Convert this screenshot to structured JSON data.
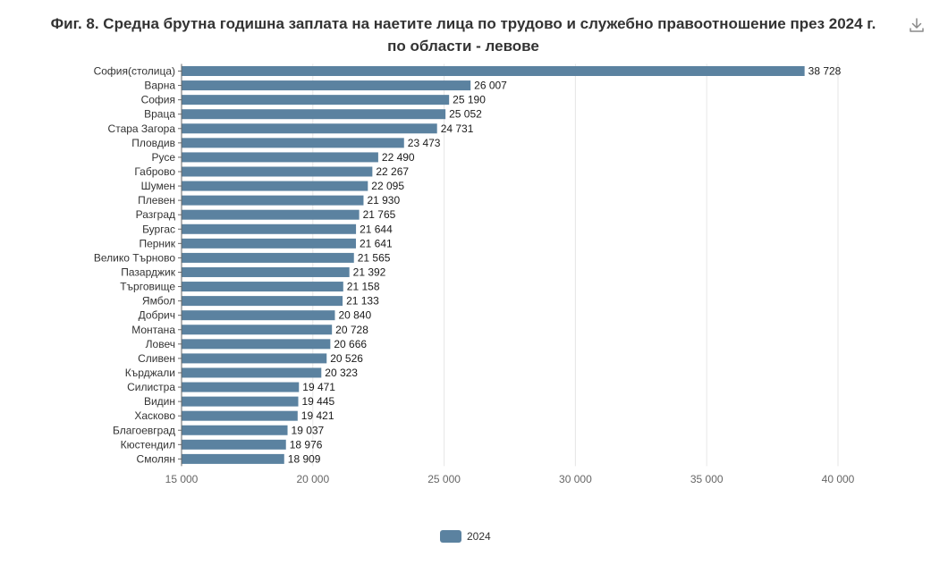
{
  "chart_data": {
    "type": "bar",
    "orientation": "horizontal",
    "title": "Фиг. 8. Средна брутна годишна заплата на наетите лица по трудово и служебно правоотношение през 2024 г. по области - левове",
    "title_lines": [
      "Фиг. 8. Средна брутна годишна заплата на наетите лица по трудово и служебно правоотношение през 2024 г.",
      "по области - левове"
    ],
    "xlabel": "",
    "ylabel": "",
    "xlim": [
      15000,
      40000
    ],
    "xticks": [
      15000,
      20000,
      25000,
      30000,
      35000,
      40000
    ],
    "xtick_labels": [
      "15 000",
      "20 000",
      "25 000",
      "30 000",
      "35 000",
      "40 000"
    ],
    "grid": true,
    "legend_position": "bottom",
    "categories": [
      "София(столица)",
      "Варна",
      "София",
      "Враца",
      "Стара Загора",
      "Пловдив",
      "Русе",
      "Габрово",
      "Шумен",
      "Плевен",
      "Разград",
      "Бургас",
      "Перник",
      "Велико Търново",
      "Пазарджик",
      "Търговище",
      "Ямбол",
      "Добрич",
      "Монтана",
      "Ловеч",
      "Сливен",
      "Кърджали",
      "Силистра",
      "Видин",
      "Хасково",
      "Благоевград",
      "Кюстендил",
      "Смолян"
    ],
    "series": [
      {
        "name": "2024",
        "color": "#5b82a0",
        "values": [
          38728,
          26007,
          25190,
          25052,
          24731,
          23473,
          22490,
          22267,
          22095,
          21930,
          21765,
          21644,
          21641,
          21565,
          21392,
          21158,
          21133,
          20840,
          20728,
          20666,
          20526,
          20323,
          19471,
          19445,
          19421,
          19037,
          18976,
          18909
        ],
        "value_labels": [
          "38 728",
          "26 007",
          "25 190",
          "25 052",
          "24 731",
          "23 473",
          "22 490",
          "22 267",
          "22 095",
          "21 930",
          "21 765",
          "21 644",
          "21 641",
          "21 565",
          "21 392",
          "21 158",
          "21 133",
          "20 840",
          "20 728",
          "20 666",
          "20 526",
          "20 323",
          "19 471",
          "19 445",
          "19 421",
          "19 037",
          "18 976",
          "18 909"
        ]
      }
    ]
  },
  "toolbar": {
    "download_icon": "download-icon"
  },
  "colors": {
    "bar": "#5b82a0",
    "grid": "#e6e6e6",
    "axis": "#666666"
  }
}
